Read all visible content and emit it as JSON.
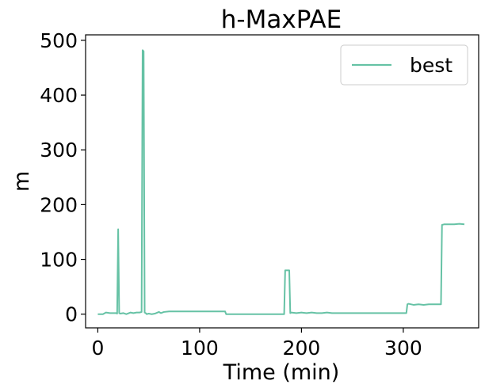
{
  "chart_data": {
    "type": "line",
    "title": "h-MaxPAE",
    "xlabel": "Time (min)",
    "ylabel": "m",
    "xlim": [
      -12,
      374
    ],
    "ylim": [
      -25,
      510
    ],
    "xticks": [
      0,
      100,
      200,
      300
    ],
    "xtick_labels": [
      "0",
      "100",
      "200",
      "300"
    ],
    "yticks": [
      0,
      100,
      200,
      300,
      400,
      500
    ],
    "ytick_labels": [
      "0",
      "100",
      "200",
      "300",
      "400",
      "500"
    ],
    "grid": false,
    "legend_position": "top-right",
    "colors": {
      "series": "#66c2a5",
      "axes": "#000000",
      "background": "#ffffff",
      "legend_border": "#cccccc"
    },
    "series": [
      {
        "name": "best",
        "x": [
          0,
          5,
          8,
          12,
          15,
          18,
          19,
          20,
          21,
          22,
          25,
          28,
          32,
          35,
          38,
          41,
          43,
          44,
          45,
          46,
          47,
          48,
          50,
          53,
          56,
          60,
          62,
          65,
          70,
          80,
          90,
          100,
          110,
          120,
          125,
          126,
          130,
          140,
          150,
          160,
          170,
          180,
          183,
          184,
          185,
          186,
          187,
          188,
          189,
          190,
          195,
          200,
          205,
          210,
          215,
          220,
          225,
          230,
          240,
          250,
          260,
          270,
          280,
          290,
          300,
          302,
          303,
          304,
          305,
          310,
          315,
          320,
          325,
          330,
          335,
          336,
          337,
          338,
          340,
          345,
          350,
          355,
          360
        ],
        "y": [
          0,
          0,
          3,
          2,
          2,
          2,
          1,
          155,
          2,
          1,
          2,
          0,
          3,
          2,
          3,
          3,
          4,
          482,
          480,
          3,
          2,
          0,
          1,
          0,
          1,
          4,
          2,
          4,
          5,
          5,
          5,
          5,
          5,
          5,
          5,
          0,
          0,
          0,
          0,
          0,
          0,
          0,
          0,
          80,
          80,
          80,
          80,
          80,
          2,
          3,
          2,
          3,
          2,
          3,
          2,
          2,
          3,
          2,
          2,
          2,
          2,
          2,
          2,
          2,
          2,
          2,
          2,
          18,
          19,
          17,
          18,
          17,
          18,
          18,
          18,
          18,
          18,
          163,
          164,
          164,
          164,
          165,
          164
        ]
      }
    ]
  }
}
